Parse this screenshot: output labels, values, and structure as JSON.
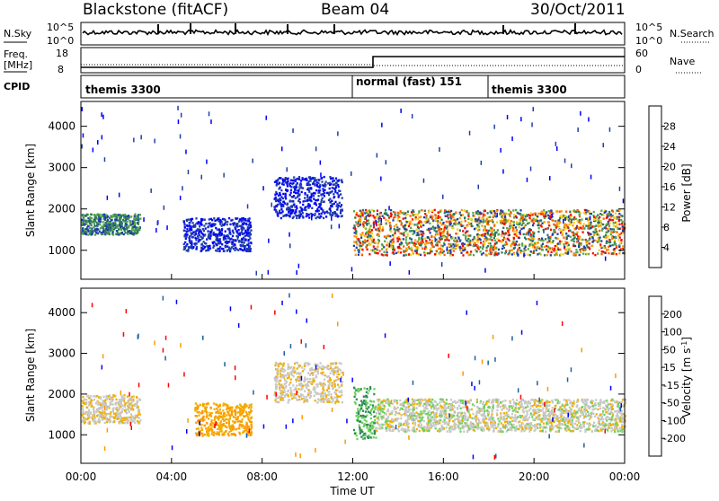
{
  "header": {
    "title": "Blackstone (fitACF)",
    "beam": "Beam 04",
    "date": "30/Oct/2011"
  },
  "noise_panel": {
    "left_label": "N.Sky",
    "right_label": "N.Search",
    "left_ticks": [
      "10^5",
      "10^0"
    ],
    "right_ticks": [
      "10^5",
      "10^0"
    ]
  },
  "freq_panel": {
    "left_label_1": "Freq.",
    "left_label_2": "[MHz]",
    "right_label": "Nave",
    "left_ticks": [
      "18",
      "8"
    ],
    "right_ticks": [
      "60",
      "0"
    ]
  },
  "cpid_panel": {
    "label": "CPID",
    "segments": [
      {
        "text": "themis 3300",
        "start_hour": 0
      },
      {
        "text": "normal (fast) 151",
        "start_hour": 12
      },
      {
        "text": "themis 3300",
        "start_hour": 18
      }
    ]
  },
  "power_colorbar": {
    "label": "Power [dB]",
    "ticks": [
      "4",
      "8",
      "12",
      "16",
      "20",
      "24",
      "28"
    ],
    "colors": [
      "#0000ff",
      "#1f3fa8",
      "#2d7a5c",
      "#52a845",
      "#f0d21e",
      "#ff9900",
      "#ff5a00",
      "#ff0000"
    ]
  },
  "velocity_colorbar": {
    "label": "Velocity [m s",
    "label_sup": "-1",
    "label_end": "]",
    "ticks": [
      "-200",
      "-100",
      "-50",
      "-15",
      "15",
      "50",
      "100",
      "200"
    ],
    "colors": [
      "#ff0000",
      "#ff5500",
      "#ff9900",
      "#f0b000",
      "#c8c8c8",
      "#6bd25a",
      "#2e8b57",
      "#1e5fa0",
      "#0000ff"
    ]
  },
  "chart_data": [
    {
      "type": "heatmap",
      "parameter": "Power",
      "ylabel": "Slant Range [km]",
      "y_ticks": [
        "1000",
        "2000",
        "3000",
        "4000"
      ],
      "ylim": [
        300,
        4600
      ],
      "xlim": [
        0,
        24
      ],
      "scatter_bands": [
        {
          "hours": [
            0,
            2.6
          ],
          "range_km": [
            1400,
            1900
          ],
          "level": "8-16 dB"
        },
        {
          "hours": [
            4.5,
            7.5
          ],
          "range_km": [
            1000,
            1800
          ],
          "level": "4-8 dB"
        },
        {
          "hours": [
            8.5,
            11.5
          ],
          "range_km": [
            1800,
            2800
          ],
          "level": "4-8 dB"
        },
        {
          "hours": [
            12,
            24
          ],
          "range_km": [
            900,
            2000
          ],
          "level": "8-28 dB"
        }
      ]
    },
    {
      "type": "heatmap",
      "parameter": "Velocity",
      "xlabel": "Time UT",
      "ylabel": "Slant Range [km]",
      "x_ticks": [
        "00:00",
        "04:00",
        "08:00",
        "12:00",
        "16:00",
        "20:00",
        "00:00"
      ],
      "y_ticks": [
        "1000",
        "2000",
        "3000",
        "4000"
      ],
      "ylim": [
        300,
        4600
      ],
      "xlim": [
        0,
        24
      ],
      "scatter_bands": [
        {
          "hours": [
            0,
            2.6
          ],
          "range_km": [
            1300,
            2000
          ],
          "level": "-15 to 15 m/s"
        },
        {
          "hours": [
            5,
            7.5
          ],
          "range_km": [
            1000,
            1800
          ],
          "level": "-50 to -15 m/s"
        },
        {
          "hours": [
            8.5,
            11.5
          ],
          "range_km": [
            1800,
            2800
          ],
          "level": "-15 to 15 m/s"
        },
        {
          "hours": [
            12,
            13
          ],
          "range_km": [
            900,
            2200
          ],
          "level": "15 to 50 m/s"
        },
        {
          "hours": [
            13,
            24
          ],
          "range_km": [
            1100,
            1900
          ],
          "level": "-15 to 15 m/s"
        }
      ]
    }
  ]
}
